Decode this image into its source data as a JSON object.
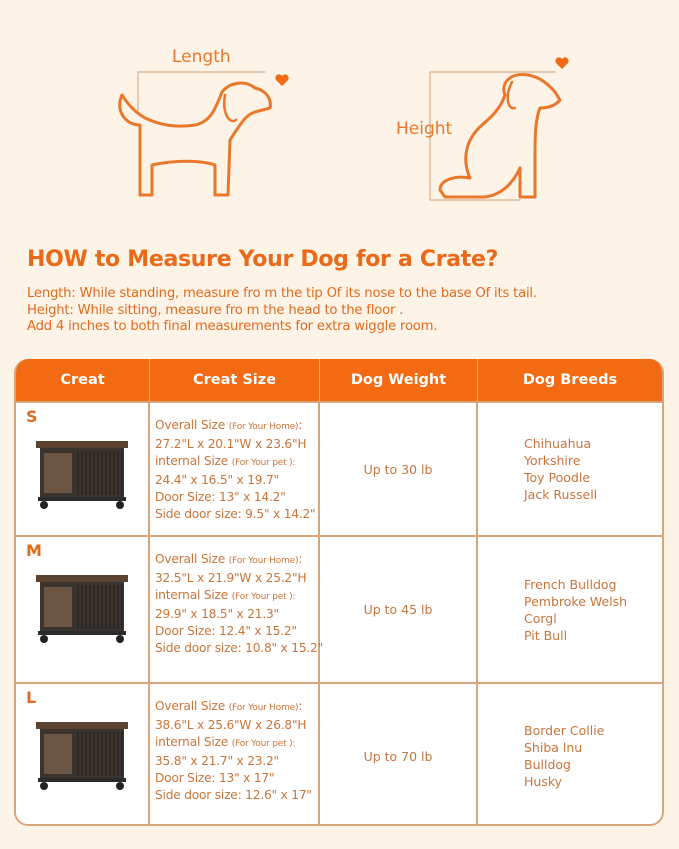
{
  "diagram": {
    "length_label": "Length",
    "height_label": "Height"
  },
  "title": "HOW to Measure Your Dog for a Crate?",
  "intro": [
    "Length: While standing, measure fro m the tip Of its nose to the base Of its tail.",
    "Height: While sitting, measure fro m the head to the floor .",
    "Add 4 inches to both final measurements for extra wiggle room."
  ],
  "table": {
    "headers": [
      "Creat",
      "Creat Size",
      "Dog Weight",
      "Dog Breeds"
    ],
    "rows": [
      {
        "size": "S",
        "overall_label": "Overall Size",
        "overall_note": "(For Your Home)",
        "overall": "27.2\"L x 20.1\"W x 23.6\"H",
        "internal_label": "internal Size",
        "internal_note": "(For Your pet ):",
        "internal": "24.4\" x 16.5\" x 19.7\"",
        "door": "Door Size: 13\" x 14.2\"",
        "side": "Side door size: 9.5\" x 14.2\"",
        "weight": "Up to 30 lb",
        "breeds": [
          "Chihuahua",
          "Yorkshire",
          "Toy Poodle",
          "Jack Russell"
        ]
      },
      {
        "size": "M",
        "overall_label": "Overall Size",
        "overall_note": "(For Your Home)",
        "overall": "32.5\"L x 21.9\"W x 25.2\"H",
        "internal_label": "internal Size",
        "internal_note": "(For Your pet ):",
        "internal": "29.9\" x 18.5\" x 21.3\"",
        "door": "Door Size: 12.4\" x 15.2\"",
        "side": "Side door size: 10.8\" x 15.2\"",
        "weight": "Up to 45 lb",
        "breeds": [
          "French Bulldog",
          "Pembroke Welsh",
          "Corgl",
          "Pit Bull"
        ]
      },
      {
        "size": "L",
        "overall_label": "Overall Size",
        "overall_note": "(For Your Home)",
        "overall": "38.6\"L x 25.6\"W x 26.8\"H",
        "internal_label": "internal Size",
        "internal_note": "(For Your pet ):",
        "internal": "35.8\" x 21.7\" x 23.2\"",
        "door": "Door Size: 13\" x 17\"",
        "side": "Side door size: 12.6\" x 17\"",
        "weight": "Up to 70 lb",
        "breeds": [
          "Border Collie",
          "Shiba lnu",
          "Bulldog",
          "Husky"
        ]
      }
    ]
  },
  "colors": {
    "accent": "#f26a12",
    "text": "#c9753a",
    "background": "#fdf3e6"
  }
}
